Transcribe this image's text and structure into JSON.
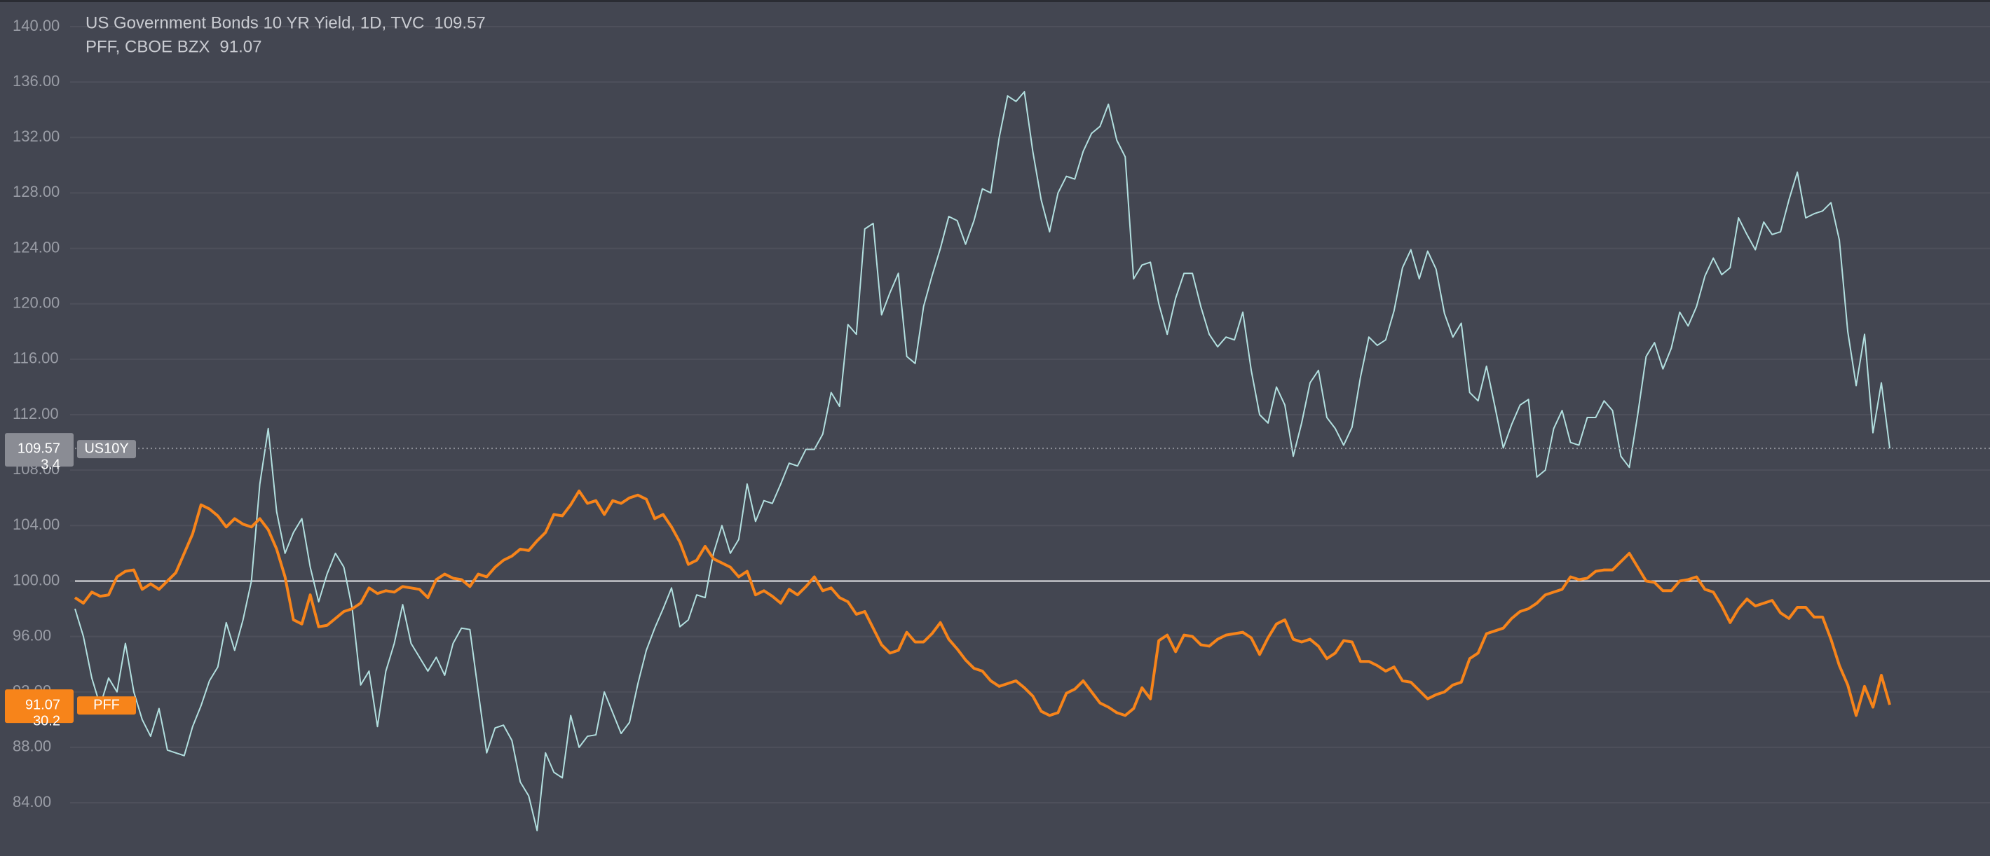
{
  "chart_data": {
    "type": "line",
    "ylim": [
      80.16,
      141.92
    ],
    "yticks": [
      {
        "value": 84,
        "label": "84.00"
      },
      {
        "value": 88,
        "label": "88.00"
      },
      {
        "value": 92,
        "label": "92.00"
      },
      {
        "value": 96,
        "label": "96.00"
      },
      {
        "value": 100,
        "label": "100.00"
      },
      {
        "value": 104,
        "label": "104.00"
      },
      {
        "value": 108,
        "label": "108.00"
      },
      {
        "value": 112,
        "label": "112.00"
      },
      {
        "value": 116,
        "label": "116.00"
      },
      {
        "value": 120,
        "label": "120.00"
      },
      {
        "value": 124,
        "label": "124.00"
      },
      {
        "value": 128,
        "label": "128.00"
      },
      {
        "value": 132,
        "label": "132.00"
      },
      {
        "value": 136,
        "label": "136.00"
      },
      {
        "value": 140,
        "label": "140.00"
      }
    ],
    "grid": true,
    "baseline": 100,
    "series": [
      {
        "name": "US Government Bonds 10 YR Yield, 1D, TVC",
        "symbol": "US10Y",
        "change": 3.4,
        "color": "#b2dfdf",
        "badge_color": "#8a8c94",
        "values": [
          98,
          96,
          93,
          91,
          93,
          92,
          95.5,
          92,
          90,
          88.8,
          90.8,
          87.8,
          87.6,
          87.4,
          89.5,
          91,
          92.8,
          93.8,
          97,
          95,
          97.2,
          100,
          107,
          111,
          105,
          102,
          103.5,
          104.5,
          101,
          98.5,
          100.5,
          102,
          101,
          98,
          92.5,
          93.5,
          89.5,
          93.5,
          95.5,
          98.3,
          95.5,
          94.5,
          93.5,
          94.5,
          93.2,
          95.5,
          96.6,
          96.5,
          92,
          87.6,
          89.4,
          89.6,
          88.5,
          85.5,
          84.5,
          82,
          87.6,
          86.2,
          85.8,
          90.3,
          88,
          88.8,
          88.9,
          92,
          90.5,
          89,
          89.8,
          92.6,
          95,
          96.6,
          98,
          99.5,
          96.7,
          97.2,
          99,
          98.8,
          102,
          104,
          102,
          103,
          107,
          104.3,
          105.8,
          105.6,
          107,
          108.5,
          108.3,
          109.5,
          109.5,
          110.6,
          113.6,
          112.6,
          118.5,
          117.8,
          125.4,
          125.8,
          119.2,
          120.8,
          122.2,
          116.2,
          115.7,
          119.8,
          122,
          124,
          126.3,
          126,
          124.3,
          126,
          128.3,
          128,
          132,
          135,
          134.6,
          135.3,
          131,
          127.5,
          125.2,
          128,
          129.2,
          129,
          131,
          132.3,
          132.8,
          134.4,
          131.8,
          130.6,
          121.8,
          122.8,
          123,
          120,
          117.8,
          120.4,
          122.2,
          122.2,
          119.8,
          117.8,
          116.9,
          117.6,
          117.4,
          119.4,
          115.2,
          112,
          111.4,
          114,
          112.7,
          109,
          111.4,
          114.3,
          115.2,
          111.8,
          111,
          109.8,
          111.1,
          114.7,
          117.6,
          117,
          117.4,
          119.5,
          122.6,
          123.9,
          121.8,
          123.8,
          122.5,
          119.3,
          117.6,
          118.6,
          113.6,
          113,
          115.5,
          112.6,
          109.6,
          111.3,
          112.7,
          113.1,
          107.5,
          108,
          111,
          112.3,
          110,
          109.8,
          111.8,
          111.8,
          113,
          112.3,
          109,
          108.2,
          112,
          116.2,
          117.2,
          115.3,
          116.8,
          119.4,
          118.4,
          119.8,
          122,
          123.3,
          122.1,
          122.6,
          126.2,
          125,
          123.9,
          125.9,
          125,
          125.2,
          127.5,
          129.5,
          126.2,
          126.5,
          126.7,
          127.3,
          124.6,
          118,
          114.1,
          117.8,
          110.7,
          114.3,
          109.57
        ]
      },
      {
        "name": "PFF, CBOE BZX",
        "symbol": "PFF",
        "change": 30.2,
        "color": "#f7841a",
        "badge_color": "#f7841a",
        "values": [
          98.8,
          98.4,
          99.2,
          98.9,
          99,
          100.3,
          100.7,
          100.8,
          99.4,
          99.8,
          99.4,
          100,
          100.6,
          102,
          103.4,
          105.5,
          105.2,
          104.7,
          103.9,
          104.5,
          104.1,
          103.9,
          104.5,
          103.7,
          102.3,
          100.3,
          97.2,
          96.9,
          99,
          96.7,
          96.8,
          97.3,
          97.8,
          98,
          98.4,
          99.5,
          99.1,
          99.3,
          99.2,
          99.6,
          99.5,
          99.4,
          98.8,
          100.1,
          100.5,
          100.2,
          100.1,
          99.6,
          100.5,
          100.3,
          101,
          101.5,
          101.8,
          102.3,
          102.2,
          102.9,
          103.5,
          104.8,
          104.7,
          105.5,
          106.5,
          105.6,
          105.8,
          104.8,
          105.8,
          105.6,
          106,
          106.2,
          105.9,
          104.5,
          104.8,
          103.9,
          102.8,
          101.2,
          101.5,
          102.5,
          101.6,
          101.3,
          101,
          100.3,
          100.7,
          99,
          99.3,
          98.9,
          98.4,
          99.4,
          99,
          99.6,
          100.3,
          99.3,
          99.5,
          98.8,
          98.5,
          97.6,
          97.8,
          96.6,
          95.4,
          94.8,
          95,
          96.3,
          95.6,
          95.6,
          96.2,
          97,
          95.8,
          95.1,
          94.3,
          93.7,
          93.5,
          92.8,
          92.4,
          92.6,
          92.8,
          92.3,
          91.7,
          90.6,
          90.3,
          90.5,
          91.9,
          92.2,
          92.8,
          92,
          91.2,
          90.9,
          90.5,
          90.3,
          90.8,
          92.3,
          91.5,
          95.7,
          96.1,
          94.9,
          96.1,
          96,
          95.4,
          95.3,
          95.8,
          96.1,
          96.2,
          96.3,
          95.9,
          94.7,
          95.9,
          96.9,
          97.2,
          95.8,
          95.6,
          95.8,
          95.3,
          94.4,
          94.8,
          95.7,
          95.6,
          94.2,
          94.2,
          93.9,
          93.5,
          93.8,
          92.8,
          92.7,
          92.1,
          91.5,
          91.8,
          92,
          92.5,
          92.7,
          94.4,
          94.8,
          96.2,
          96.4,
          96.6,
          97.3,
          97.8,
          98,
          98.4,
          99,
          99.2,
          99.4,
          100.3,
          100.1,
          100.2,
          100.7,
          100.8,
          100.8,
          101.4,
          102,
          101,
          100,
          99.9,
          99.3,
          99.3,
          100,
          100.1,
          100.3,
          99.4,
          99.2,
          98.2,
          97,
          98,
          98.7,
          98.2,
          98.4,
          98.6,
          97.7,
          97.3,
          98.1,
          98.1,
          97.4,
          97.4,
          95.8,
          93.9,
          92.5,
          90.3,
          92.4,
          90.9,
          93.2,
          91.07
        ]
      }
    ]
  }
}
